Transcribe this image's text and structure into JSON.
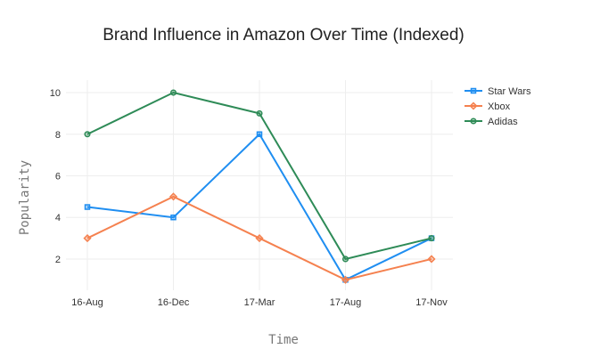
{
  "chart_data": {
    "type": "line",
    "title": "Brand Influence in Amazon Over Time (Indexed)",
    "xlabel": "Time",
    "ylabel": "Popularity",
    "categories": [
      "16-Aug",
      "16-Dec",
      "17-Mar",
      "17-Aug",
      "17-Nov"
    ],
    "ylim": [
      0.5,
      10.6
    ],
    "yticks": [
      2,
      4,
      6,
      8,
      10
    ],
    "grid": true,
    "legend_position": "top-right",
    "series": [
      {
        "name": "Star Wars",
        "color": "#1f8ef1",
        "marker": "square",
        "values": [
          4.5,
          4,
          8,
          1,
          3
        ]
      },
      {
        "name": "Xbox",
        "color": "#f5814f",
        "marker": "diamond",
        "values": [
          3,
          5,
          3,
          1,
          2
        ]
      },
      {
        "name": "Adidas",
        "color": "#2e8b57",
        "marker": "circle",
        "values": [
          8,
          10,
          9,
          2,
          3
        ]
      }
    ]
  }
}
